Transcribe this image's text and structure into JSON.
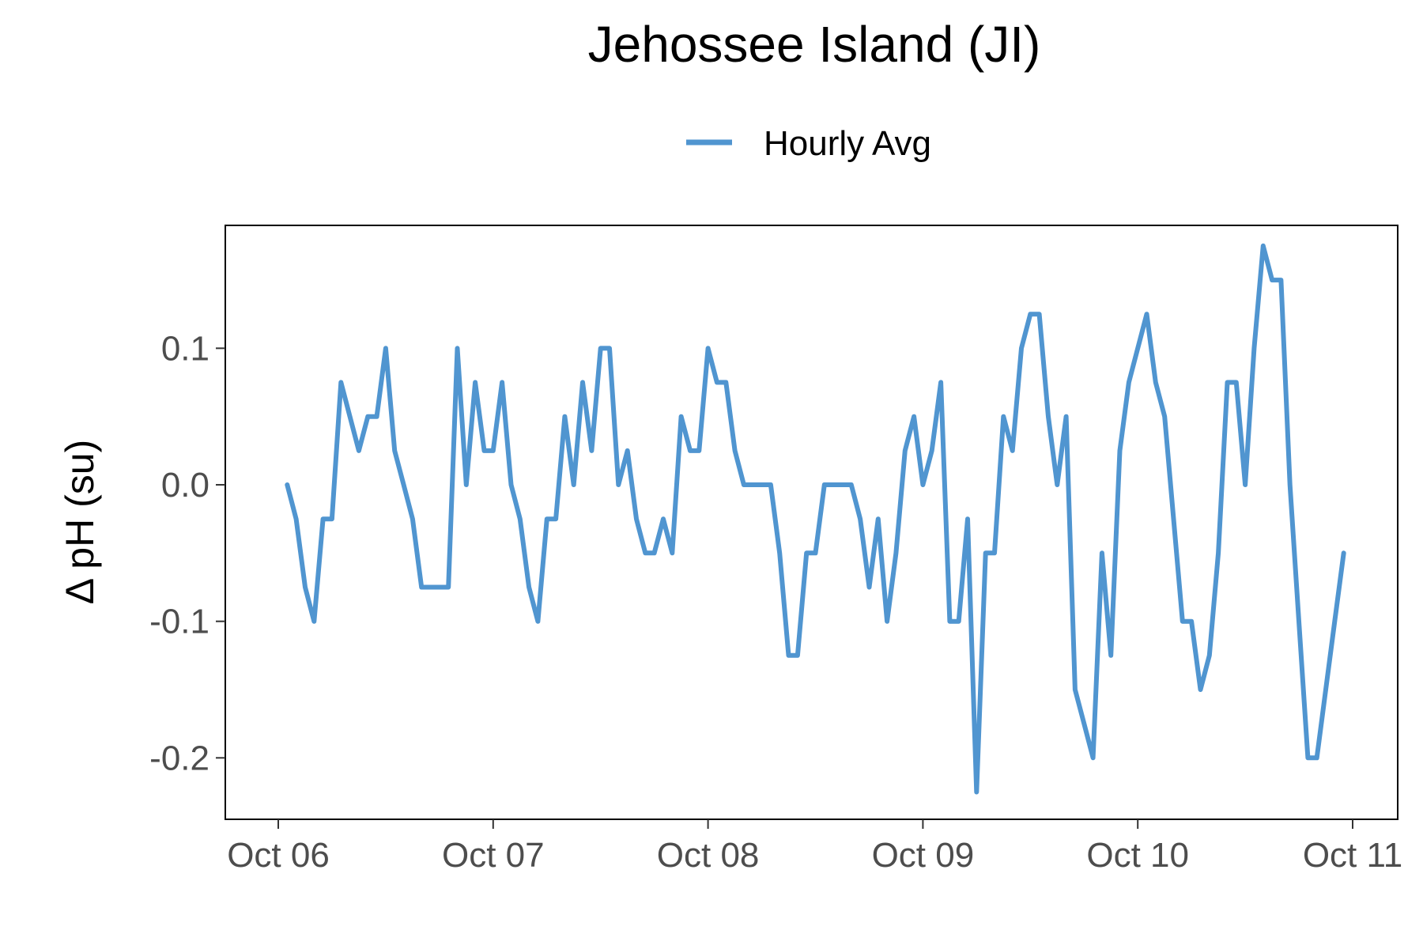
{
  "chart_data": {
    "type": "line",
    "title": "Jehossee Island (JI)",
    "xlabel": "",
    "ylabel": "Δ pH (su)",
    "legend": {
      "position": "top",
      "entries": [
        "Hourly Avg"
      ]
    },
    "xlim": [
      "2023-10-06T00:00",
      "2023-10-11T00:00"
    ],
    "ylim": [
      -0.245,
      0.19
    ],
    "grid": false,
    "color": "#5095d0",
    "x_tick_labels": [
      "Oct 06",
      "Oct 07",
      "Oct 08",
      "Oct 09",
      "Oct 10",
      "Oct 11"
    ],
    "x_tick_values": [
      "2023-10-06T00:00",
      "2023-10-07T00:00",
      "2023-10-08T00:00",
      "2023-10-09T00:00",
      "2023-10-10T00:00",
      "2023-10-11T00:00"
    ],
    "y_tick_labels": [
      "0.1",
      "0.0",
      "-0.1",
      "-0.2"
    ],
    "y_tick_values": [
      0.1,
      0.0,
      -0.1,
      -0.2
    ],
    "series": [
      {
        "name": "Hourly Avg",
        "x": [
          "2023-10-06T01:00",
          "2023-10-06T02:00",
          "2023-10-06T03:00",
          "2023-10-06T04:00",
          "2023-10-06T05:00",
          "2023-10-06T06:00",
          "2023-10-06T07:00",
          "2023-10-06T08:00",
          "2023-10-06T09:00",
          "2023-10-06T10:00",
          "2023-10-06T11:00",
          "2023-10-06T12:00",
          "2023-10-06T13:00",
          "2023-10-06T14:00",
          "2023-10-06T15:00",
          "2023-10-06T16:00",
          "2023-10-06T17:00",
          "2023-10-06T18:00",
          "2023-10-06T19:00",
          "2023-10-06T20:00",
          "2023-10-06T21:00",
          "2023-10-06T22:00",
          "2023-10-06T23:00",
          "2023-10-07T00:00",
          "2023-10-07T01:00",
          "2023-10-07T02:00",
          "2023-10-07T03:00",
          "2023-10-07T04:00",
          "2023-10-07T05:00",
          "2023-10-07T06:00",
          "2023-10-07T07:00",
          "2023-10-07T08:00",
          "2023-10-07T09:00",
          "2023-10-07T10:00",
          "2023-10-07T11:00",
          "2023-10-07T12:00",
          "2023-10-07T13:00",
          "2023-10-07T14:00",
          "2023-10-07T15:00",
          "2023-10-07T16:00",
          "2023-10-07T17:00",
          "2023-10-07T18:00",
          "2023-10-07T19:00",
          "2023-10-07T20:00",
          "2023-10-07T21:00",
          "2023-10-07T22:00",
          "2023-10-07T23:00",
          "2023-10-08T00:00",
          "2023-10-08T01:00",
          "2023-10-08T02:00",
          "2023-10-08T03:00",
          "2023-10-08T04:00",
          "2023-10-08T05:00",
          "2023-10-08T06:00",
          "2023-10-08T07:00",
          "2023-10-08T08:00",
          "2023-10-08T09:00",
          "2023-10-08T10:00",
          "2023-10-08T11:00",
          "2023-10-08T12:00",
          "2023-10-08T13:00",
          "2023-10-08T14:00",
          "2023-10-08T15:00",
          "2023-10-08T16:00",
          "2023-10-08T17:00",
          "2023-10-08T18:00",
          "2023-10-08T19:00",
          "2023-10-08T20:00",
          "2023-10-08T21:00",
          "2023-10-08T22:00",
          "2023-10-08T23:00",
          "2023-10-09T00:00",
          "2023-10-09T01:00",
          "2023-10-09T02:00",
          "2023-10-09T03:00",
          "2023-10-09T04:00",
          "2023-10-09T05:00",
          "2023-10-09T06:00",
          "2023-10-09T07:00",
          "2023-10-09T08:00",
          "2023-10-09T09:00",
          "2023-10-09T10:00",
          "2023-10-09T11:00",
          "2023-10-09T12:00",
          "2023-10-09T13:00",
          "2023-10-09T14:00",
          "2023-10-09T15:00",
          "2023-10-09T16:00",
          "2023-10-09T17:00",
          "2023-10-09T18:00",
          "2023-10-09T19:00",
          "2023-10-09T20:00",
          "2023-10-09T21:00",
          "2023-10-09T22:00",
          "2023-10-09T23:00",
          "2023-10-10T00:00",
          "2023-10-10T01:00",
          "2023-10-10T02:00",
          "2023-10-10T03:00",
          "2023-10-10T04:00",
          "2023-10-10T05:00",
          "2023-10-10T06:00",
          "2023-10-10T07:00",
          "2023-10-10T08:00",
          "2023-10-10T09:00",
          "2023-10-10T10:00",
          "2023-10-10T11:00",
          "2023-10-10T12:00",
          "2023-10-10T13:00",
          "2023-10-10T14:00",
          "2023-10-10T15:00",
          "2023-10-10T16:00",
          "2023-10-10T17:00",
          "2023-10-10T18:00",
          "2023-10-10T19:00",
          "2023-10-10T20:00",
          "2023-10-10T21:00",
          "2023-10-10T22:00",
          "2023-10-10T23:00"
        ],
        "y": [
          0.0,
          -0.025,
          -0.075,
          -0.1,
          -0.025,
          -0.025,
          0.075,
          0.05,
          0.025,
          0.05,
          0.05,
          0.1,
          0.025,
          0.0,
          -0.025,
          -0.075,
          -0.075,
          -0.075,
          -0.075,
          0.1,
          0.0,
          0.075,
          0.025,
          0.025,
          0.075,
          0.0,
          -0.025,
          -0.075,
          -0.1,
          -0.025,
          -0.025,
          0.05,
          0.0,
          0.075,
          0.025,
          0.1,
          0.1,
          0.0,
          0.025,
          -0.025,
          -0.05,
          -0.05,
          -0.025,
          -0.05,
          0.05,
          0.025,
          0.025,
          0.1,
          0.075,
          0.075,
          0.025,
          0.0,
          0.0,
          0.0,
          0.0,
          -0.05,
          -0.125,
          -0.125,
          -0.05,
          -0.05,
          0.0,
          0.0,
          0.0,
          0.0,
          -0.025,
          -0.075,
          -0.025,
          -0.1,
          -0.05,
          0.025,
          0.05,
          0.0,
          0.025,
          0.075,
          -0.1,
          -0.1,
          -0.025,
          -0.225,
          -0.05,
          -0.05,
          0.05,
          0.025,
          0.1,
          0.125,
          0.125,
          0.05,
          0.0,
          0.05,
          -0.15,
          -0.175,
          -0.2,
          -0.05,
          -0.125,
          0.025,
          0.075,
          0.1,
          0.125,
          0.075,
          0.05,
          -0.025,
          -0.1,
          -0.1,
          -0.15,
          -0.125,
          -0.05,
          0.075,
          0.075,
          0.0,
          0.1,
          0.175,
          0.15,
          0.15,
          0.0,
          -0.1,
          -0.2,
          -0.2,
          -0.15,
          -0.1,
          -0.05
        ]
      }
    ]
  }
}
